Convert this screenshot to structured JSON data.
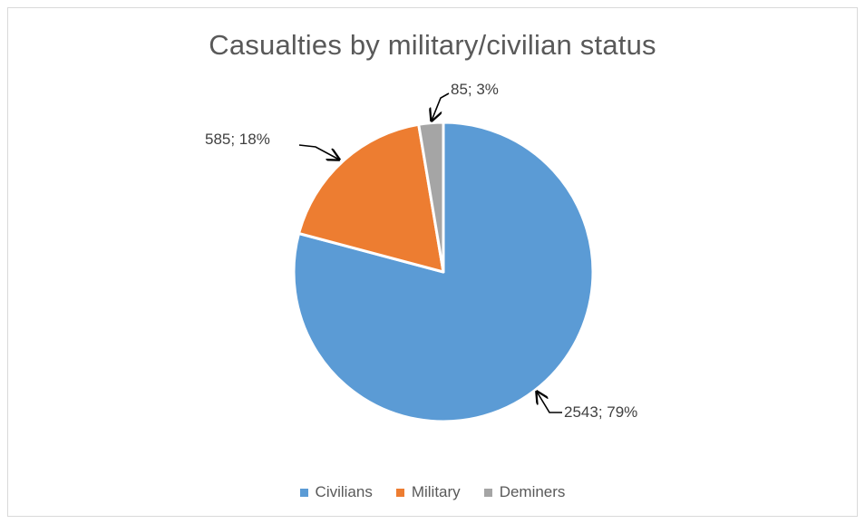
{
  "chart_data": {
    "type": "pie",
    "title": "Casualties by military/civilian status",
    "categories": [
      "Civilians",
      "Military",
      "Deminers"
    ],
    "values": [
      2543,
      585,
      85
    ],
    "percentages": [
      79,
      18,
      3
    ],
    "data_labels": [
      "2543; 79%",
      "585; 18%",
      "85; 3%"
    ],
    "colors": [
      "#5b9bd5",
      "#ed7d31",
      "#a5a5a5"
    ],
    "legend_position": "bottom",
    "label_style": "outside-with-arrows"
  }
}
